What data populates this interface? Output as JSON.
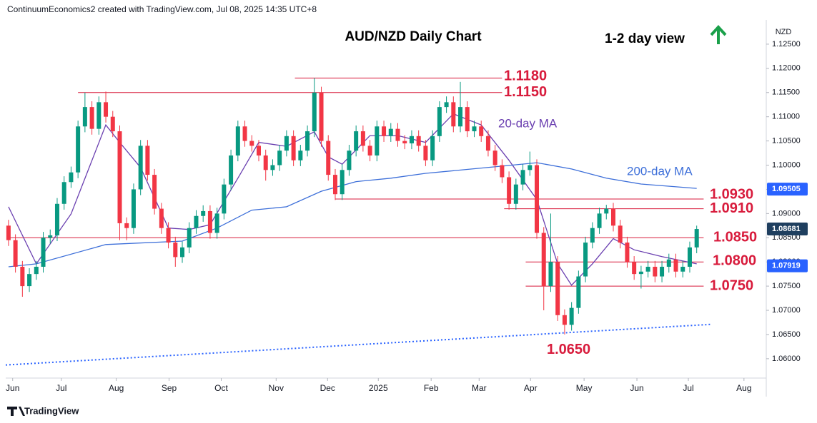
{
  "header": "ContinuumEconomics2 created with TradingView.com, Jul 08, 2025 14:35 UTC+8",
  "footer": "TradingView",
  "chart_data": {
    "type": "candlestick",
    "title": "AUD/NZD Daily Chart",
    "subtitle": "1-2 day view",
    "currency": "NZD",
    "up_color": "#089981",
    "down_color": "#f23645",
    "xlim": [
      -0.4,
      108.8
    ],
    "xticks": [
      {
        "value": 0.6,
        "label": "Jun"
      },
      {
        "value": 7.6,
        "label": "Jul"
      },
      {
        "value": 15.5,
        "label": "Aug"
      },
      {
        "value": 23.1,
        "label": "Sep"
      },
      {
        "value": 30.6,
        "label": "Oct"
      },
      {
        "value": 38.5,
        "label": "Nov"
      },
      {
        "value": 45.9,
        "label": "Dec"
      },
      {
        "value": 53.2,
        "label": "2025"
      },
      {
        "value": 60.8,
        "label": "Feb"
      },
      {
        "value": 67.7,
        "label": "Mar"
      },
      {
        "value": 75.1,
        "label": "Apr"
      },
      {
        "value": 82.8,
        "label": "May"
      },
      {
        "value": 90.4,
        "label": "Jun"
      },
      {
        "value": 97.8,
        "label": "Jul"
      },
      {
        "value": 105.8,
        "label": "Aug"
      }
    ],
    "ylim": [
      1.056,
      1.13
    ],
    "yticks": [
      {
        "value": 1.125,
        "label": "1.12500"
      },
      {
        "value": 1.12,
        "label": "1.12000"
      },
      {
        "value": 1.115,
        "label": "1.11500"
      },
      {
        "value": 1.11,
        "label": "1.11000"
      },
      {
        "value": 1.105,
        "label": "1.10500"
      },
      {
        "value": 1.1,
        "label": "1.10000"
      },
      {
        "value": 1.095,
        "label": "1.09500"
      },
      {
        "value": 1.09,
        "label": "1.09000"
      },
      {
        "value": 1.085,
        "label": "1.08500"
      },
      {
        "value": 1.08,
        "label": "1.08000"
      },
      {
        "value": 1.075,
        "label": "1.07500"
      },
      {
        "value": 1.07,
        "label": "1.07000"
      },
      {
        "value": 1.065,
        "label": "1.06500"
      },
      {
        "value": 1.06,
        "label": "1.06000"
      }
    ],
    "candles": [
      [
        1.0875,
        1.0887,
        1.0833,
        1.0845
      ],
      [
        1.0845,
        1.0857,
        1.0778,
        1.079
      ],
      [
        1.079,
        1.0802,
        1.0728,
        1.075
      ],
      [
        1.075,
        1.0787,
        1.0738,
        1.0775
      ],
      [
        1.0775,
        1.0802,
        1.0763,
        1.079
      ],
      [
        1.079,
        1.0862,
        1.0778,
        1.085
      ],
      [
        1.085,
        1.0867,
        1.0838,
        1.0855
      ],
      [
        1.0855,
        1.0932,
        1.0843,
        1.092
      ],
      [
        1.092,
        1.0977,
        1.0908,
        1.0965
      ],
      [
        1.0965,
        1.0997,
        1.0953,
        1.0985
      ],
      [
        1.0985,
        1.1092,
        1.0973,
        1.108
      ],
      [
        1.108,
        1.115,
        1.1068,
        1.112
      ],
      [
        1.112,
        1.1132,
        1.1063,
        1.1075
      ],
      [
        1.1075,
        1.1142,
        1.1063,
        1.113
      ],
      [
        1.113,
        1.1152,
        1.1088,
        1.11
      ],
      [
        1.11,
        1.1112,
        1.1058,
        1.107
      ],
      [
        1.107,
        1.1082,
        1.0845,
        1.088
      ],
      [
        1.088,
        1.0892,
        1.0845,
        1.087
      ],
      [
        1.087,
        1.0962,
        1.0858,
        1.095
      ],
      [
        1.095,
        1.1052,
        1.0938,
        1.104
      ],
      [
        1.104,
        1.1052,
        1.0968,
        1.098
      ],
      [
        1.098,
        1.0992,
        1.0898,
        1.091
      ],
      [
        1.091,
        1.0922,
        1.0858,
        1.087
      ],
      [
        1.087,
        1.0882,
        1.0828,
        1.084
      ],
      [
        1.084,
        1.0852,
        1.079,
        1.081
      ],
      [
        1.081,
        1.0842,
        1.0798,
        1.083
      ],
      [
        1.083,
        1.0882,
        1.0818,
        1.087
      ],
      [
        1.087,
        1.0907,
        1.0858,
        1.0895
      ],
      [
        1.0895,
        1.0917,
        1.0883,
        1.0905
      ],
      [
        1.0905,
        1.0917,
        1.0848,
        1.086
      ],
      [
        1.086,
        1.0912,
        1.0848,
        1.09
      ],
      [
        1.09,
        1.0972,
        1.0888,
        1.096
      ],
      [
        1.096,
        1.1032,
        1.0948,
        1.102
      ],
      [
        1.102,
        1.1092,
        1.1008,
        1.108
      ],
      [
        1.108,
        1.1092,
        1.1038,
        1.105
      ],
      [
        1.105,
        1.1062,
        1.1028,
        1.104
      ],
      [
        1.104,
        1.1052,
        1.1008,
        1.102
      ],
      [
        1.102,
        1.1032,
        1.0968,
        1.099
      ],
      [
        1.099,
        1.1012,
        1.0978,
        1.1
      ],
      [
        1.1,
        1.1042,
        1.0988,
        1.103
      ],
      [
        1.103,
        1.1072,
        1.1018,
        1.106
      ],
      [
        1.106,
        1.1072,
        1.0998,
        1.101
      ],
      [
        1.101,
        1.1042,
        1.0998,
        1.103
      ],
      [
        1.103,
        1.1082,
        1.1018,
        1.107
      ],
      [
        1.107,
        1.118,
        1.1058,
        1.115
      ],
      [
        1.115,
        1.1162,
        1.1038,
        1.105
      ],
      [
        1.105,
        1.1062,
        1.0968,
        1.098
      ],
      [
        1.098,
        1.0992,
        1.0928,
        1.094
      ],
      [
        1.094,
        1.1002,
        1.0928,
        1.099
      ],
      [
        1.099,
        1.1042,
        1.0978,
        1.103
      ],
      [
        1.103,
        1.1082,
        1.1018,
        1.107
      ],
      [
        1.107,
        1.1082,
        1.1028,
        1.104
      ],
      [
        1.104,
        1.1052,
        1.1008,
        1.102
      ],
      [
        1.102,
        1.1092,
        1.1008,
        1.108
      ],
      [
        1.108,
        1.1092,
        1.1048,
        1.106
      ],
      [
        1.106,
        1.1087,
        1.1048,
        1.1075
      ],
      [
        1.1075,
        1.1087,
        1.1038,
        1.105
      ],
      [
        1.105,
        1.1062,
        1.1033,
        1.1045
      ],
      [
        1.1045,
        1.1072,
        1.1033,
        1.106
      ],
      [
        1.106,
        1.1072,
        1.1028,
        1.104
      ],
      [
        1.104,
        1.1052,
        1.0998,
        1.101
      ],
      [
        1.101,
        1.1072,
        1.0998,
        1.106
      ],
      [
        1.106,
        1.1132,
        1.1048,
        1.112
      ],
      [
        1.112,
        1.1142,
        1.1108,
        1.113
      ],
      [
        1.113,
        1.1142,
        1.1068,
        1.108
      ],
      [
        1.108,
        1.1172,
        1.1068,
        1.112
      ],
      [
        1.112,
        1.1132,
        1.1058,
        1.107
      ],
      [
        1.107,
        1.1092,
        1.1058,
        1.108
      ],
      [
        1.108,
        1.1092,
        1.1048,
        1.106
      ],
      [
        1.106,
        1.1072,
        1.1018,
        1.103
      ],
      [
        1.103,
        1.1042,
        1.0988,
        1.1
      ],
      [
        1.1,
        1.1012,
        1.0963,
        1.0975
      ],
      [
        1.0975,
        1.0987,
        1.0908,
        1.092
      ],
      [
        1.092,
        1.0972,
        1.0908,
        1.096
      ],
      [
        1.096,
        1.1002,
        1.0948,
        1.099
      ],
      [
        1.099,
        1.1028,
        1.0978,
        1.1
      ],
      [
        1.1,
        1.1012,
        1.0848,
        1.086
      ],
      [
        1.086,
        1.0872,
        1.07,
        1.075
      ],
      [
        1.075,
        1.09,
        1.0738,
        1.08
      ],
      [
        1.08,
        1.0812,
        1.0678,
        1.069
      ],
      [
        1.069,
        1.0702,
        1.065,
        1.067
      ],
      [
        1.067,
        1.0717,
        1.0658,
        1.0705
      ],
      [
        1.0705,
        1.0782,
        1.0693,
        1.077
      ],
      [
        1.077,
        1.0852,
        1.0758,
        1.084
      ],
      [
        1.084,
        1.0882,
        1.0828,
        1.087
      ],
      [
        1.087,
        1.0912,
        1.0858,
        1.09
      ],
      [
        1.09,
        1.0918,
        1.0888,
        1.091
      ],
      [
        1.091,
        1.0922,
        1.0863,
        1.0875
      ],
      [
        1.0875,
        1.0887,
        1.0828,
        1.084
      ],
      [
        1.084,
        1.0852,
        1.0788,
        1.08
      ],
      [
        1.08,
        1.0812,
        1.0763,
        1.0775
      ],
      [
        1.0775,
        1.0792,
        1.0745,
        1.078
      ],
      [
        1.078,
        1.0802,
        1.0768,
        1.079
      ],
      [
        1.079,
        1.0802,
        1.0758,
        1.077
      ],
      [
        1.077,
        1.0802,
        1.0758,
        1.079
      ],
      [
        1.079,
        1.0817,
        1.0778,
        1.0805
      ],
      [
        1.0805,
        1.0817,
        1.0768,
        1.078
      ],
      [
        1.078,
        1.0802,
        1.0768,
        1.079
      ],
      [
        1.079,
        1.0842,
        1.0778,
        1.083
      ],
      [
        1.083,
        1.0875,
        1.0818,
        1.0868
      ]
    ],
    "series": [
      {
        "name": "20-day MA",
        "color": "#6a3fb0",
        "x": [
          0,
          4,
          9,
          14,
          16,
          19,
          23,
          26,
          29,
          33,
          36,
          40,
          44,
          46,
          48,
          52,
          56,
          60,
          64,
          68,
          72,
          76,
          79,
          81,
          84,
          87,
          90,
          94,
          99
        ],
        "values": [
          1.0914,
          1.0796,
          1.0899,
          1.1083,
          1.1047,
          1.0995,
          1.087,
          1.0867,
          1.0877,
          1.0973,
          1.1047,
          1.1039,
          1.1069,
          1.1017,
          1.1002,
          1.1061,
          1.1061,
          1.1047,
          1.1106,
          1.1083,
          1.101,
          1.0929,
          1.0796,
          1.0752,
          1.0796,
          1.0848,
          1.0825,
          1.0811,
          1.0796
        ]
      },
      {
        "name": "200-day MA",
        "color": "#3d6fd9",
        "x": [
          0,
          4,
          14,
          25,
          30,
          35,
          40,
          45,
          50,
          55,
          60,
          71,
          76,
          81,
          86,
          91,
          99
        ],
        "values": [
          1.079,
          1.0796,
          1.0836,
          1.0843,
          1.087,
          1.0907,
          1.0914,
          1.0946,
          1.0966,
          1.0973,
          1.0983,
          1.0998,
          1.1005,
          1.0992,
          1.0973,
          1.0961,
          1.0952
        ]
      }
    ],
    "trendline": {
      "color": "#2962ff",
      "x": [
        -0.4,
        101.1
      ],
      "values": [
        1.0587,
        1.0671
      ]
    },
    "levels": {
      "color": "#d81b3c",
      "values": [
        1.118,
        1.115,
        1.093,
        1.091,
        1.085,
        1.08,
        1.075,
        1.065
      ],
      "value_labels": [
        "1.1180",
        "1.1150",
        "1.0930",
        "1.0910",
        "1.0850",
        "1.0800",
        "1.0750",
        "1.0650"
      ]
    },
    "price_badges": {
      "values": [
        1.09505,
        1.08681,
        1.07919
      ],
      "colors": [
        "#2962ff",
        "#1f3f5f",
        "#2962ff"
      ]
    }
  }
}
